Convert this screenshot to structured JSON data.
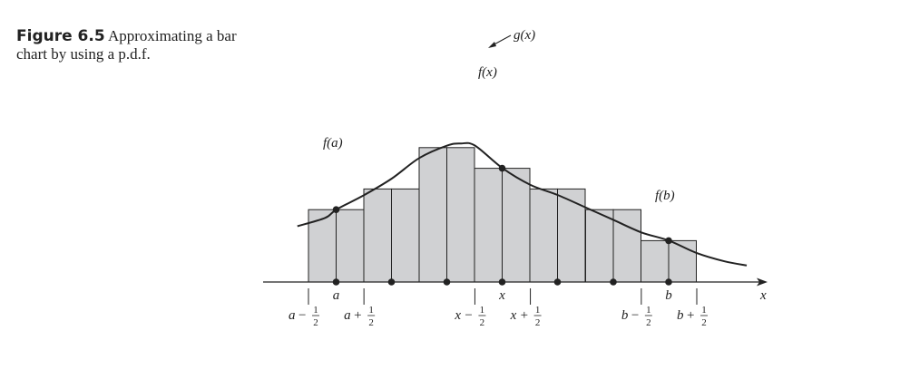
{
  "caption": {
    "figure_number": "Figure 6.5",
    "text": "Approximating a bar chart by using a p.d.f."
  },
  "chart_data": {
    "type": "bar",
    "description_free": true,
    "bars": [
      {
        "k": 1,
        "p": 3.5
      },
      {
        "k": 2,
        "p": 4.5
      },
      {
        "k": 3,
        "p": 6.5
      },
      {
        "k": 4,
        "p": 5.5
      },
      {
        "k": 5,
        "p": 4.5
      },
      {
        "k": 6,
        "p": 3.5
      },
      {
        "k": 7,
        "p": 2.0
      }
    ],
    "point_labels": [
      {
        "k": 1,
        "label": "f(a)",
        "at": "a"
      },
      {
        "k": 4,
        "label": "f(x)",
        "at": "x"
      },
      {
        "k": 7,
        "label": "f(b)",
        "at": "b"
      }
    ],
    "curve": {
      "label": "g(x)",
      "points": [
        [
          0.3,
          2.7
        ],
        [
          0.8,
          3.1
        ],
        [
          1.0,
          3.5
        ],
        [
          1.5,
          4.2
        ],
        [
          2.0,
          5.0
        ],
        [
          2.5,
          6.0
        ],
        [
          3.0,
          6.6
        ],
        [
          3.25,
          6.7
        ],
        [
          3.5,
          6.6
        ],
        [
          4.0,
          5.5
        ],
        [
          4.5,
          4.7
        ],
        [
          5.0,
          4.2
        ],
        [
          5.5,
          3.6
        ],
        [
          6.0,
          3.0
        ],
        [
          6.5,
          2.4
        ],
        [
          7.0,
          2.0
        ],
        [
          7.5,
          1.4
        ],
        [
          8.0,
          1.0
        ],
        [
          8.4,
          0.8
        ]
      ]
    },
    "x_axis": {
      "label": "x",
      "tick_labels": [
        {
          "k": 1,
          "label": "a"
        },
        {
          "k": 4,
          "label": "x"
        },
        {
          "k": 7,
          "label": "b"
        }
      ],
      "boundary_labels": [
        {
          "at": 0.5,
          "var": "a",
          "sign": "−",
          "frac": [
            "1",
            "2"
          ]
        },
        {
          "at": 1.5,
          "var": "a",
          "sign": "+",
          "frac": [
            "1",
            "2"
          ]
        },
        {
          "at": 3.5,
          "var": "x",
          "sign": "−",
          "frac": [
            "1",
            "2"
          ]
        },
        {
          "at": 4.5,
          "var": "x",
          "sign": "+",
          "frac": [
            "1",
            "2"
          ]
        },
        {
          "at": 6.5,
          "var": "b",
          "sign": "−",
          "frac": [
            "1",
            "2"
          ]
        },
        {
          "at": 7.5,
          "var": "b",
          "sign": "+",
          "frac": [
            "1",
            "2"
          ]
        }
      ]
    },
    "xlim": [
      0,
      8.7
    ],
    "ylim": [
      0,
      7
    ]
  }
}
